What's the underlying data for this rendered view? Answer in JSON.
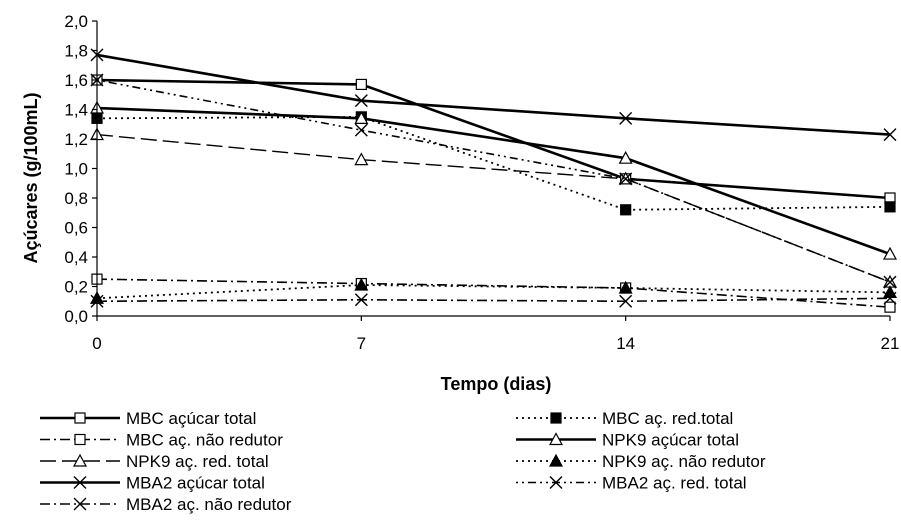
{
  "chart_data": {
    "type": "line",
    "xlabel": "Tempo (dias)",
    "ylabel": "Açúcares (g/100mL)",
    "x": [
      0,
      7,
      14,
      21
    ],
    "x_ticks": [
      "0",
      "7",
      "14",
      "21"
    ],
    "ylim": [
      0,
      2.0
    ],
    "y_ticks": [
      "0,0",
      "0,2",
      "0,4",
      "0,6",
      "0,8",
      "1,0",
      "1,2",
      "1,4",
      "1,6",
      "1,8",
      "2,0"
    ],
    "grid": false,
    "legend_position": "bottom",
    "series": [
      {
        "name": "MBC açúcar total",
        "values": [
          1.6,
          1.57,
          0.93,
          0.8
        ],
        "line": "solid",
        "marker": "square-open"
      },
      {
        "name": "MBC aç. red.total",
        "values": [
          1.34,
          1.35,
          0.72,
          0.74
        ],
        "line": "dotted",
        "marker": "square-filled"
      },
      {
        "name": "MBC aç. não redutor",
        "values": [
          0.25,
          0.22,
          0.19,
          0.06
        ],
        "line": "dashdot",
        "marker": "square-open"
      },
      {
        "name": "NPK9 açúcar total",
        "values": [
          1.41,
          1.34,
          1.07,
          0.42
        ],
        "line": "solid",
        "marker": "triangle-open"
      },
      {
        "name": "NPK9 aç. red. total",
        "values": [
          1.23,
          1.06,
          0.93,
          0.23
        ],
        "line": "longdash",
        "marker": "triangle-open"
      },
      {
        "name": "NPK9 aç. não redutor",
        "values": [
          0.12,
          0.21,
          0.19,
          0.16
        ],
        "line": "dotted",
        "marker": "triangle-filled"
      },
      {
        "name": "MBA2 açúcar total",
        "values": [
          1.77,
          1.46,
          1.34,
          1.23
        ],
        "line": "solid",
        "marker": "x"
      },
      {
        "name": "MBA2 aç. red. total",
        "values": [
          1.6,
          1.26,
          0.93,
          0.23
        ],
        "line": "dotdash",
        "marker": "x"
      },
      {
        "name": "MBA2 aç. não redutor",
        "values": [
          0.1,
          0.11,
          0.1,
          0.12
        ],
        "line": "dashdot",
        "marker": "x"
      }
    ],
    "legend_order": [
      "MBC açúcar total",
      "MBC aç. red.total",
      "MBC aç. não redutor",
      "NPK9 açúcar total",
      "NPK9 aç. red. total",
      "NPK9 aç. não redutor",
      "MBA2 açúcar total",
      "MBA2 aç. red. total",
      "MBA2 aç. não redutor"
    ]
  }
}
